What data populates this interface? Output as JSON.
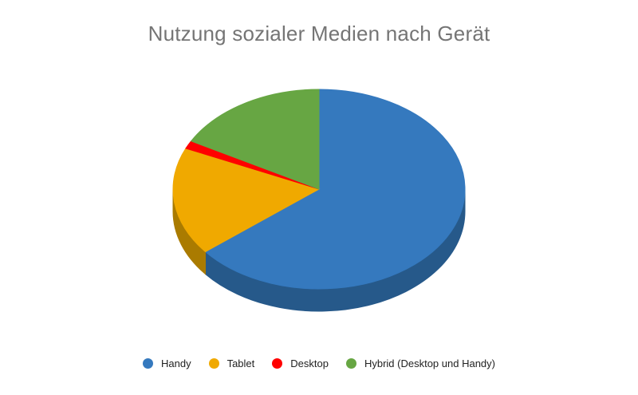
{
  "page": {
    "background": "#ffffff"
  },
  "chart_data": {
    "type": "pie",
    "style": "3d",
    "title": "Nutzung sozialer Medien nach Gerät",
    "title_color": "#757575",
    "labels": [
      "Handy",
      "Tablet",
      "Desktop",
      "Hybrid (Desktop und Handy)"
    ],
    "values": [
      64.2,
      17.5,
      1.3,
      17.0
    ],
    "values_note": "estimated percent shares read from slice angles; no data labels shown in chart",
    "colors": [
      "#3579be",
      "#f0a900",
      "#ff0000",
      "#67a643"
    ],
    "side_colors": [
      "#26598a",
      "#aa7b00",
      null,
      null
    ],
    "start_angle_deg": 0,
    "direction": "clockwise",
    "data_labels_shown": false,
    "legend_position": "bottom",
    "legend_text_color": "#222222"
  }
}
